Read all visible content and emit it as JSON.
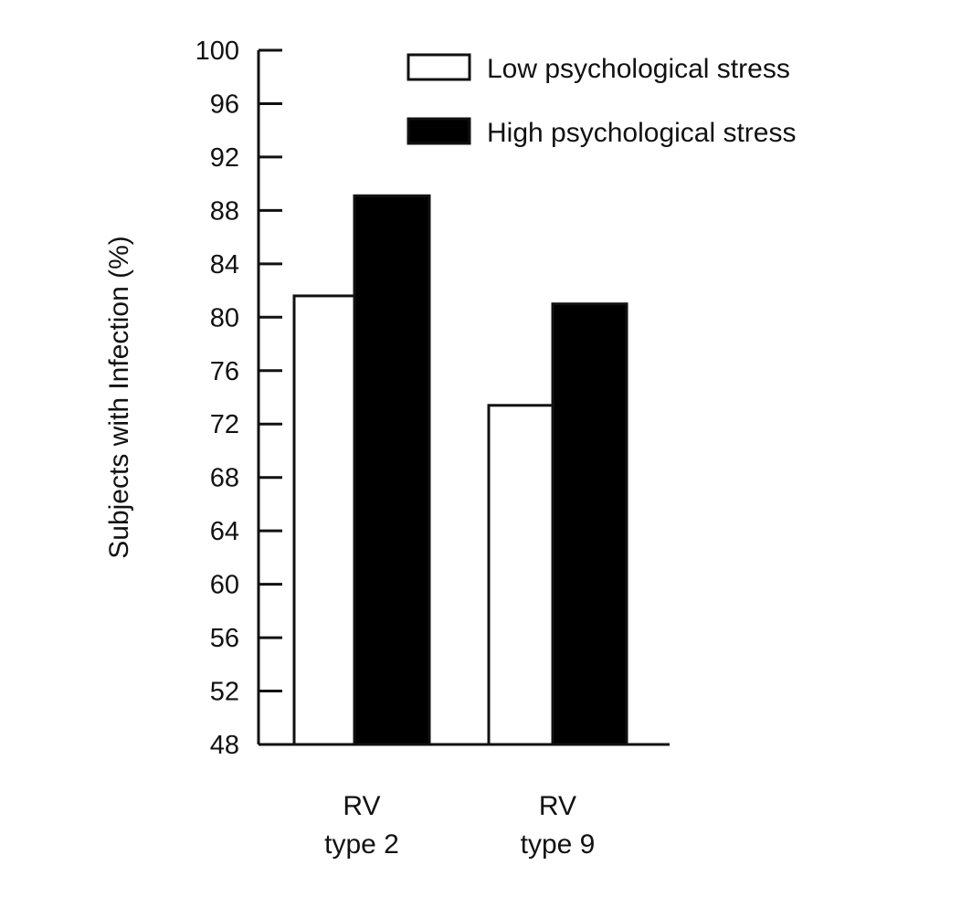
{
  "chart_data": {
    "type": "bar",
    "title": "",
    "xlabel": "",
    "ylabel": "Subjects with Infection (%)",
    "ylim": [
      48,
      100
    ],
    "yticks": [
      48,
      52,
      56,
      60,
      64,
      68,
      72,
      76,
      80,
      84,
      88,
      92,
      96,
      100
    ],
    "categories": [
      [
        "RV",
        "type 2"
      ],
      [
        "RV",
        "type 9"
      ]
    ],
    "series": [
      {
        "name": "Low psychological stress",
        "color": "#ffffff",
        "values": [
          81.6,
          73.4
        ]
      },
      {
        "name": "High psychological stress",
        "color": "#000000",
        "values": [
          89.1,
          81.0
        ]
      }
    ],
    "legend_position": "top-right",
    "grid": false
  }
}
